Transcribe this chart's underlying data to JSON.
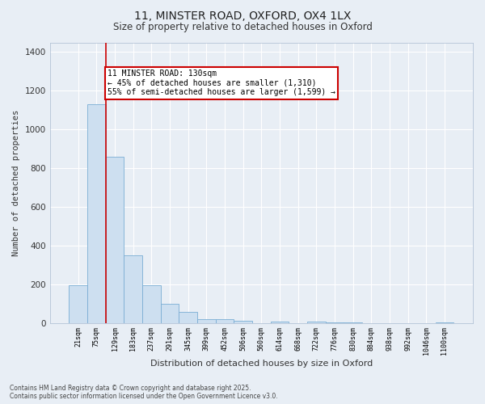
{
  "title_line1": "11, MINSTER ROAD, OXFORD, OX4 1LX",
  "title_line2": "Size of property relative to detached houses in Oxford",
  "xlabel": "Distribution of detached houses by size in Oxford",
  "ylabel": "Number of detached properties",
  "categories": [
    "21sqm",
    "75sqm",
    "129sqm",
    "183sqm",
    "237sqm",
    "291sqm",
    "345sqm",
    "399sqm",
    "452sqm",
    "506sqm",
    "560sqm",
    "614sqm",
    "668sqm",
    "722sqm",
    "776sqm",
    "830sqm",
    "884sqm",
    "938sqm",
    "992sqm",
    "1046sqm",
    "1100sqm"
  ],
  "values": [
    195,
    1130,
    860,
    350,
    195,
    100,
    55,
    20,
    18,
    12,
    0,
    8,
    0,
    5,
    3,
    2,
    0,
    0,
    0,
    0,
    2
  ],
  "bar_color": "#cddff0",
  "bar_edge_color": "#7aadd4",
  "vline_x_idx": 1,
  "vline_color": "#cc0000",
  "annotation_text": "11 MINSTER ROAD: 130sqm\n← 45% of detached houses are smaller (1,310)\n55% of semi-detached houses are larger (1,599) →",
  "annotation_box_color": "#cc0000",
  "annotation_fill_color": "#ffffff",
  "ylim": [
    0,
    1450
  ],
  "yticks": [
    0,
    200,
    400,
    600,
    800,
    1000,
    1200,
    1400
  ],
  "bg_color": "#e8eef5",
  "grid_color": "#ffffff",
  "footer_line1": "Contains HM Land Registry data © Crown copyright and database right 2025.",
  "footer_line2": "Contains public sector information licensed under the Open Government Licence v3.0.",
  "title_font": "DejaVu Sans",
  "tick_font": "DejaVu Sans Mono",
  "title1_fontsize": 10,
  "title2_fontsize": 8.5,
  "ylabel_fontsize": 7.5,
  "xlabel_fontsize": 8,
  "annot_fontsize": 7,
  "footer_fontsize": 5.5
}
